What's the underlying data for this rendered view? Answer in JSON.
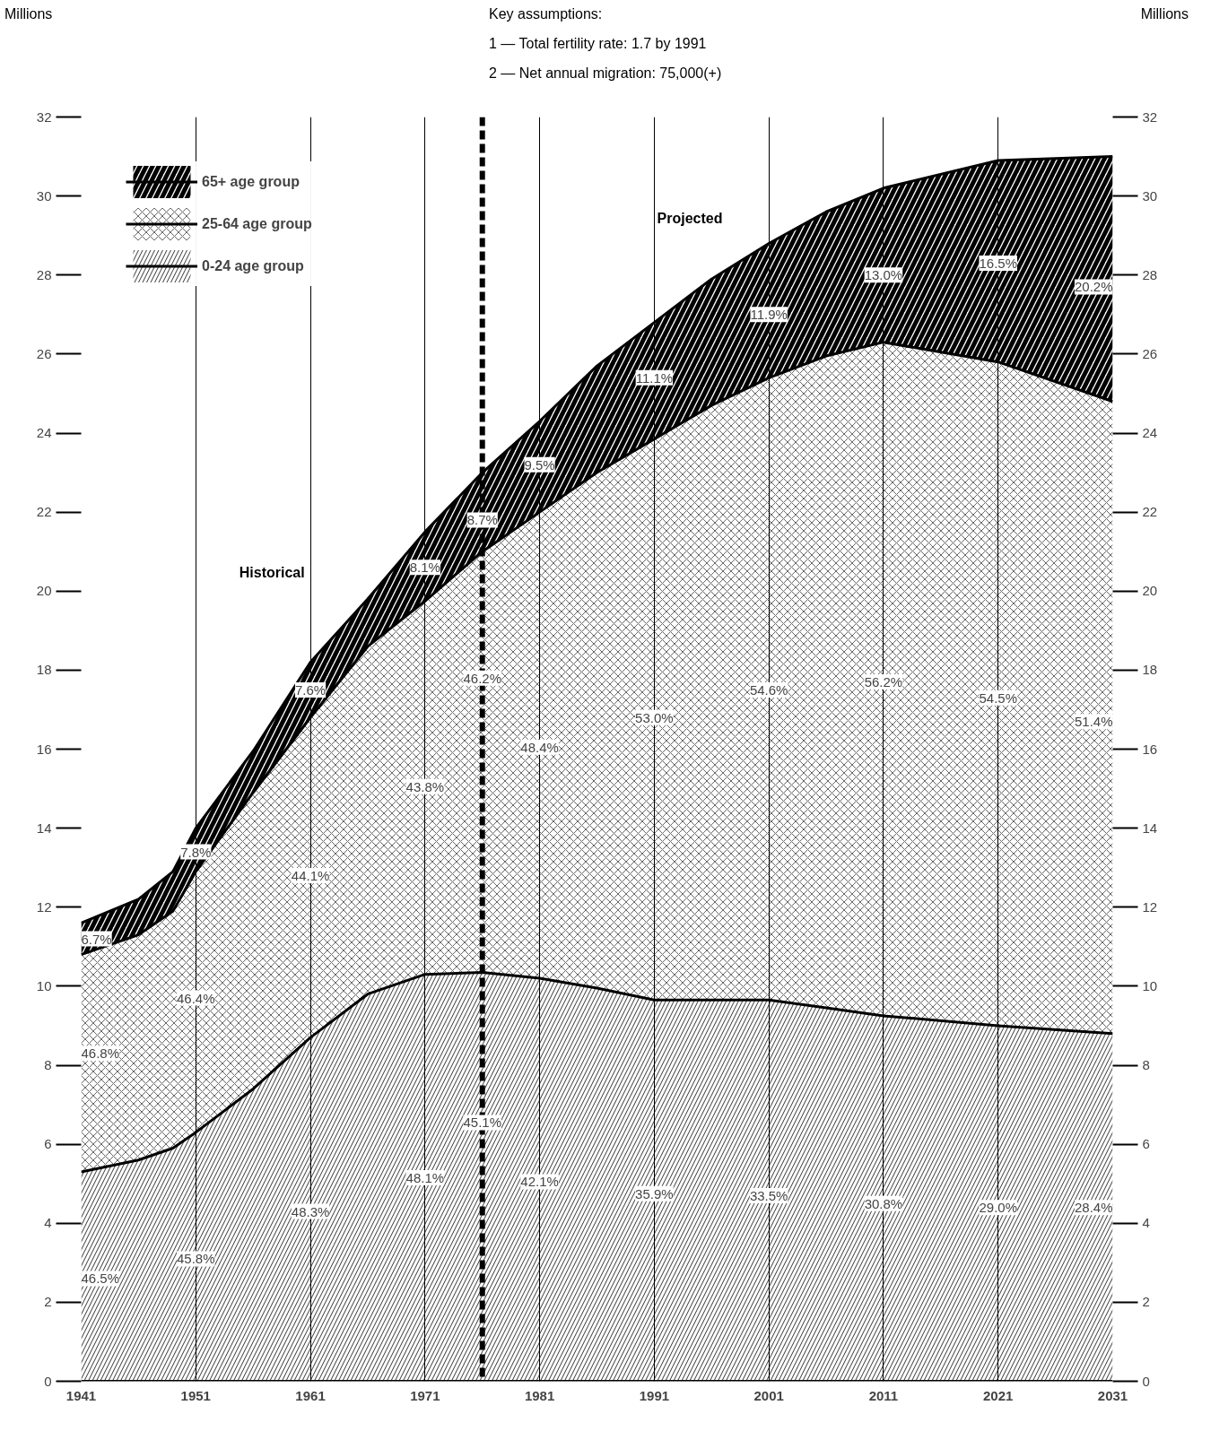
{
  "chart_data": {
    "type": "area",
    "stacked": true,
    "title": "Key assumptions:",
    "x": [
      1941,
      1946,
      1949,
      1951,
      1956,
      1961,
      1966,
      1971,
      1976,
      1981,
      1986,
      1991,
      1996,
      2001,
      2006,
      2011,
      2021,
      2031
    ],
    "series": [
      {
        "name": "0-24 age group",
        "color": "#000000",
        "values": [
          5.3,
          5.6,
          5.9,
          6.3,
          7.4,
          8.7,
          9.8,
          10.3,
          10.35,
          10.2,
          9.95,
          9.65,
          9.65,
          9.65,
          9.45,
          9.25,
          9.0,
          8.8
        ]
      },
      {
        "name": "25-64 age group",
        "color": "#000000",
        "values": [
          5.5,
          5.7,
          6.0,
          6.6,
          7.5,
          8.1,
          8.8,
          9.45,
          10.65,
          11.8,
          13.05,
          14.2,
          15.05,
          15.75,
          16.5,
          17.05,
          16.8,
          16.0
        ]
      },
      {
        "name": "65+ age group",
        "color": "#000000",
        "values": [
          0.8,
          0.9,
          1.0,
          1.1,
          1.05,
          1.4,
          1.2,
          1.75,
          2.0,
          2.3,
          2.7,
          2.95,
          3.2,
          3.4,
          3.65,
          3.9,
          5.1,
          6.2
        ]
      }
    ],
    "xlim": [
      1941,
      2031
    ],
    "xticks": [
      1941,
      1951,
      1961,
      1971,
      1981,
      1991,
      2001,
      2011,
      2021,
      2031
    ],
    "ylim": [
      0,
      32
    ],
    "yticks": [
      0,
      2,
      4,
      6,
      8,
      10,
      12,
      14,
      16,
      18,
      20,
      22,
      24,
      26,
      28,
      30,
      32
    ],
    "y2lim": [
      0,
      32
    ],
    "y2ticks": [
      0,
      2,
      4,
      6,
      8,
      10,
      12,
      14,
      16,
      18,
      20,
      22,
      24,
      26,
      28,
      30,
      32
    ],
    "grid": "x",
    "legend": "top left",
    "ref_lines": [
      {
        "axis": "x",
        "value": 1976,
        "label": null,
        "color": "#000000",
        "line_style": "dashed"
      }
    ],
    "annotations": [
      "Millions",
      "Millions",
      "1 — Total fertility rate: 1.7 by 1991",
      "2 — Net annual migration: 75,000(+)",
      "Historical",
      "Projected",
      {
        "text": "6.7%",
        "x": 1941,
        "y": 11.2
      },
      {
        "text": "7.8%",
        "x": 1951,
        "y": 13.4
      },
      {
        "text": "7.6%",
        "x": 1961,
        "y": 17.5
      },
      {
        "text": "8.1%",
        "x": 1971,
        "y": 20.6
      },
      {
        "text": "8.7%",
        "x": 1976,
        "y": 21.8
      },
      {
        "text": "9.5%",
        "x": 1981,
        "y": 23.2
      },
      {
        "text": "11.1%",
        "x": 1991,
        "y": 25.4
      },
      {
        "text": "11.9%",
        "x": 2001,
        "y": 27.0
      },
      {
        "text": "13.0%",
        "x": 2011,
        "y": 28.0
      },
      {
        "text": "16.5%",
        "x": 2021,
        "y": 28.3
      },
      {
        "text": "20.2%",
        "x": 2031,
        "y": 27.7
      },
      {
        "text": "46.8%",
        "x": 1941,
        "y": 8.3
      },
      {
        "text": "46.4%",
        "x": 1951,
        "y": 9.7
      },
      {
        "text": "44.1%",
        "x": 1961,
        "y": 12.8
      },
      {
        "text": "43.8%",
        "x": 1971,
        "y": 15.05
      },
      {
        "text": "46.2%",
        "x": 1976,
        "y": 17.8
      },
      {
        "text": "48.4%",
        "x": 1981,
        "y": 16.05
      },
      {
        "text": "53.0%",
        "x": 1991,
        "y": 16.8
      },
      {
        "text": "54.6%",
        "x": 2001,
        "y": 17.5
      },
      {
        "text": "56.2%",
        "x": 2011,
        "y": 17.7
      },
      {
        "text": "54.5%",
        "x": 2021,
        "y": 17.3
      },
      {
        "text": "51.4%",
        "x": 2031,
        "y": 16.7
      },
      {
        "text": "46.5%",
        "x": 1941,
        "y": 2.6
      },
      {
        "text": "45.8%",
        "x": 1951,
        "y": 3.1
      },
      {
        "text": "48.3%",
        "x": 1961,
        "y": 4.3
      },
      {
        "text": "48.1%",
        "x": 1971,
        "y": 5.15
      },
      {
        "text": "45.1%",
        "x": 1976,
        "y": 6.55
      },
      {
        "text": "42.1%",
        "x": 1981,
        "y": 5.05
      },
      {
        "text": "35.9%",
        "x": 1991,
        "y": 4.75
      },
      {
        "text": "33.5%",
        "x": 2001,
        "y": 4.7
      },
      {
        "text": "30.8%",
        "x": 2011,
        "y": 4.5
      },
      {
        "text": "29.0%",
        "x": 2021,
        "y": 4.4
      },
      {
        "text": "28.4%",
        "x": 2031,
        "y": 4.4
      }
    ]
  }
}
